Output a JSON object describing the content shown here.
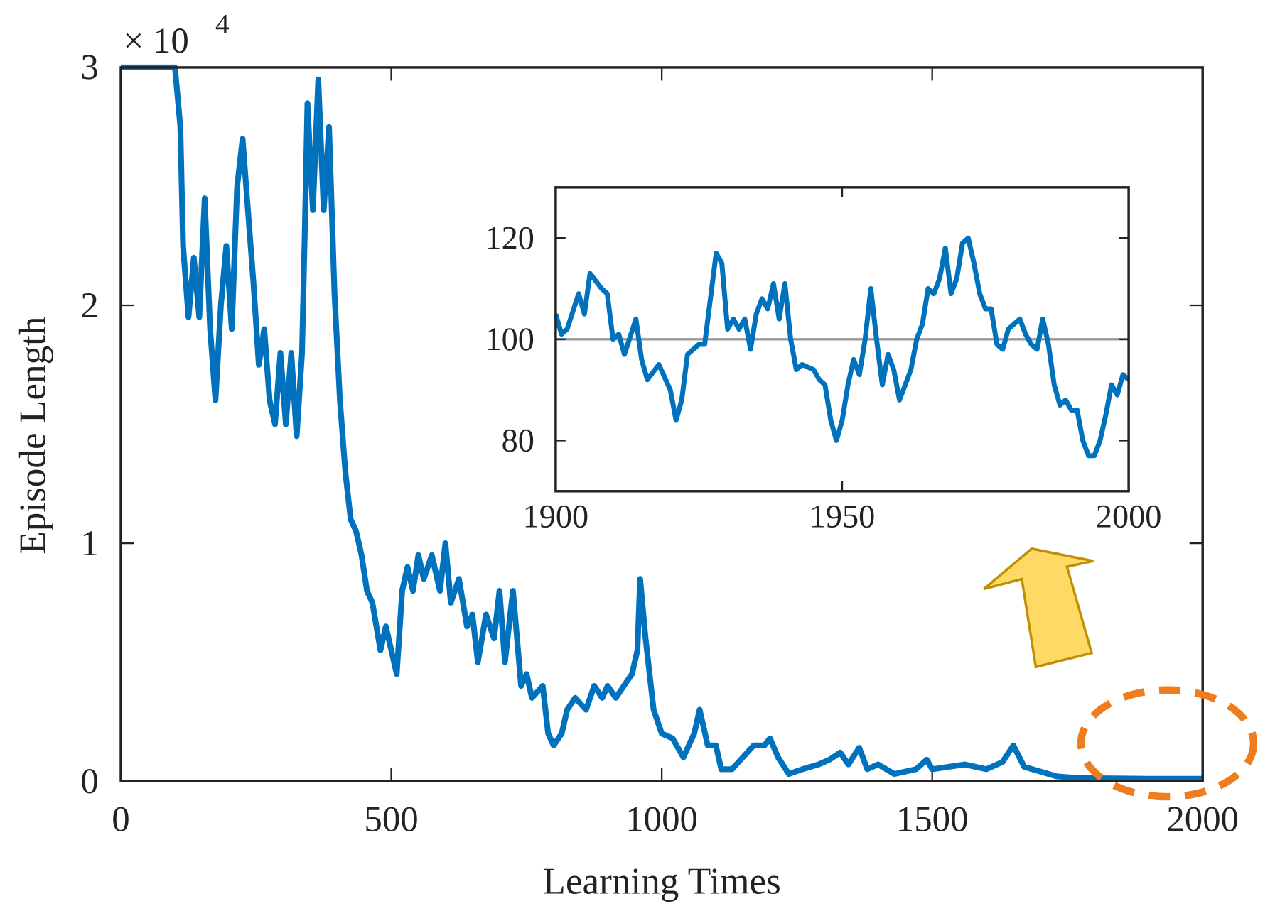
{
  "chart_data": [
    {
      "type": "line",
      "xlabel": "Learning Times",
      "ylabel": "Episode Length",
      "y_scale_label": {
        "base": "× 10",
        "exponent": "4"
      },
      "color": "#0072bd",
      "xlim": [
        0,
        2000
      ],
      "xticks": [
        0,
        500,
        1000,
        1500,
        2000
      ],
      "ylim": [
        0,
        30000
      ],
      "yticks": [
        {
          "value": 0,
          "label": "0"
        },
        {
          "value": 10000,
          "label": "1"
        },
        {
          "value": 20000,
          "label": "2"
        },
        {
          "value": 30000,
          "label": "3"
        }
      ],
      "x": [
        0,
        100,
        110,
        115,
        125,
        135,
        145,
        155,
        165,
        175,
        185,
        195,
        205,
        215,
        225,
        235,
        245,
        255,
        265,
        275,
        285,
        295,
        305,
        315,
        325,
        335,
        340,
        345,
        355,
        365,
        375,
        385,
        395,
        405,
        415,
        425,
        435,
        445,
        455,
        465,
        480,
        490,
        510,
        520,
        530,
        540,
        550,
        560,
        575,
        590,
        600,
        610,
        625,
        640,
        650,
        660,
        675,
        690,
        700,
        710,
        725,
        740,
        750,
        760,
        780,
        790,
        800,
        815,
        825,
        840,
        860,
        875,
        890,
        900,
        915,
        930,
        945,
        955,
        960,
        970,
        985,
        1000,
        1020,
        1040,
        1060,
        1070,
        1085,
        1100,
        1110,
        1130,
        1150,
        1170,
        1190,
        1200,
        1215,
        1235,
        1260,
        1290,
        1310,
        1330,
        1345,
        1365,
        1380,
        1400,
        1430,
        1450,
        1470,
        1490,
        1500,
        1530,
        1560,
        1600,
        1630,
        1650,
        1670,
        1700,
        1730,
        1760,
        1800,
        1850,
        1900,
        1950,
        2000
      ],
      "values": [
        30000,
        30000,
        27500,
        22500,
        19500,
        22000,
        19500,
        24500,
        19000,
        16000,
        20000,
        22500,
        19000,
        25000,
        27000,
        24000,
        21000,
        17500,
        19000,
        16000,
        15000,
        18000,
        15000,
        18000,
        14500,
        18000,
        23000,
        28500,
        24000,
        29500,
        24000,
        27500,
        20500,
        16000,
        13000,
        11000,
        10500,
        9500,
        8000,
        7500,
        5500,
        6500,
        4500,
        8000,
        9000,
        8000,
        9500,
        8500,
        9500,
        8000,
        10000,
        7500,
        8500,
        6500,
        7000,
        5000,
        7000,
        6000,
        8000,
        5000,
        8000,
        4000,
        4500,
        3500,
        4000,
        2000,
        1500,
        2000,
        3000,
        3500,
        3000,
        4000,
        3500,
        4000,
        3500,
        4000,
        4500,
        5500,
        8500,
        6000,
        3000,
        2000,
        1800,
        1000,
        2000,
        3000,
        1500,
        1500,
        500,
        500,
        1000,
        1500,
        1500,
        1800,
        1000,
        300,
        500,
        700,
        900,
        1200,
        700,
        1400,
        500,
        700,
        300,
        400,
        500,
        900,
        500,
        600,
        700,
        500,
        800,
        1500,
        600,
        400,
        200,
        150,
        120,
        110,
        100,
        100,
        95
      ]
    },
    {
      "type": "line",
      "color": "#0072bd",
      "xlim": [
        1900,
        2000
      ],
      "xticks": [
        1900,
        1950,
        2000
      ],
      "ylim": [
        70,
        130
      ],
      "yticks": [
        80,
        100,
        120
      ],
      "reference_line": {
        "value": 100,
        "color": "#999999"
      },
      "x": [
        1900,
        1901,
        1902,
        1904,
        1905,
        1906,
        1908,
        1909,
        1910,
        1911,
        1912,
        1914,
        1915,
        1916,
        1918,
        1920,
        1921,
        1922,
        1923,
        1925,
        1926,
        1927,
        1928,
        1929,
        1930,
        1931,
        1932,
        1933,
        1934,
        1935,
        1936,
        1937,
        1938,
        1939,
        1940,
        1941,
        1942,
        1943,
        1945,
        1946,
        1947,
        1948,
        1949,
        1950,
        1951,
        1952,
        1953,
        1954,
        1955,
        1956,
        1957,
        1958,
        1959,
        1960,
        1961,
        1962,
        1963,
        1964,
        1965,
        1966,
        1967,
        1968,
        1969,
        1970,
        1971,
        1972,
        1973,
        1974,
        1975,
        1976,
        1977,
        1978,
        1979,
        1980,
        1981,
        1982,
        1983,
        1984,
        1985,
        1986,
        1987,
        1988,
        1989,
        1990,
        1991,
        1992,
        1993,
        1994,
        1995,
        1996,
        1997,
        1998,
        1999,
        2000
      ],
      "values": [
        105,
        101,
        102,
        109,
        105,
        113,
        110,
        109,
        100,
        101,
        97,
        104,
        96,
        92,
        95,
        90,
        84,
        88,
        97,
        99,
        99,
        108,
        117,
        115,
        102,
        104,
        102,
        104,
        98,
        105,
        108,
        106,
        111,
        104,
        111,
        100,
        94,
        95,
        94,
        92,
        91,
        84,
        80,
        84,
        91,
        96,
        93,
        100,
        110,
        100,
        91,
        97,
        94,
        88,
        91,
        94,
        100,
        103,
        110,
        109,
        112,
        118,
        109,
        112,
        119,
        120,
        115,
        109,
        106,
        106,
        99,
        98,
        102,
        103,
        104,
        101,
        99,
        98,
        104,
        99,
        91,
        87,
        88,
        86,
        86,
        80,
        77,
        77,
        80,
        85,
        91,
        89,
        93,
        92
      ]
    }
  ]
}
